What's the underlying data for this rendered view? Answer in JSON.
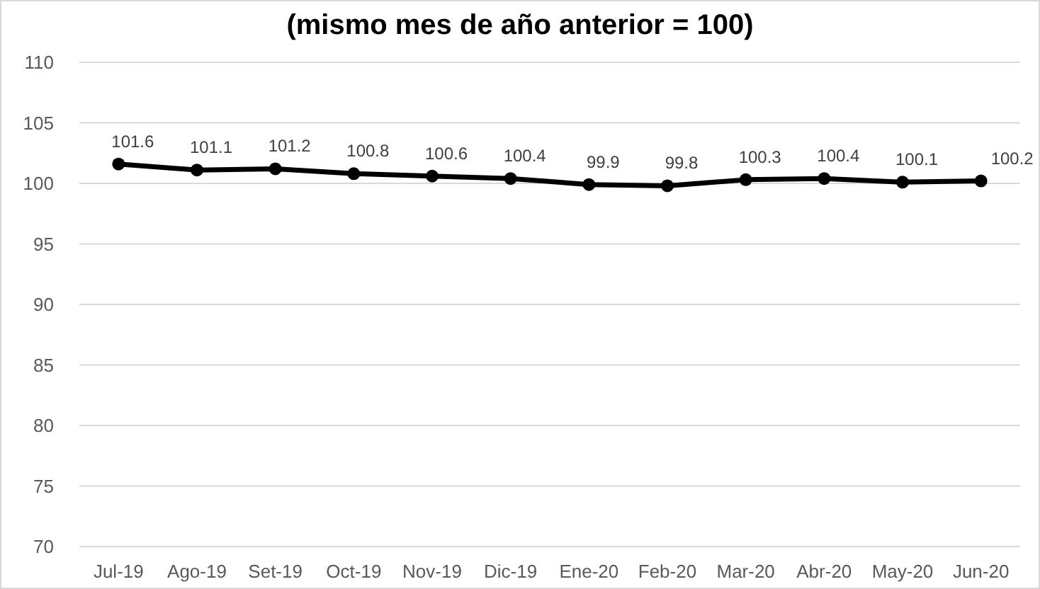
{
  "chart_data": {
    "type": "line",
    "title": "(mismo mes de año anterior = 100)",
    "categories": [
      "Jul-19",
      "Ago-19",
      "Set-19",
      "Oct-19",
      "Nov-19",
      "Dic-19",
      "Ene-20",
      "Feb-20",
      "Mar-20",
      "Abr-20",
      "May-20",
      "Jun-20"
    ],
    "series": [
      {
        "color": "#000000",
        "values": [
          101.6,
          101.1,
          101.2,
          100.8,
          100.6,
          100.4,
          99.9,
          99.8,
          100.3,
          100.4,
          100.1,
          100.2
        ]
      }
    ],
    "ylim": [
      70,
      110
    ],
    "yticks": [
      70,
      75,
      80,
      85,
      90,
      95,
      100,
      105,
      110
    ],
    "grid": "y",
    "marker": "circle",
    "line_style": "solid",
    "data_labels": true
  }
}
